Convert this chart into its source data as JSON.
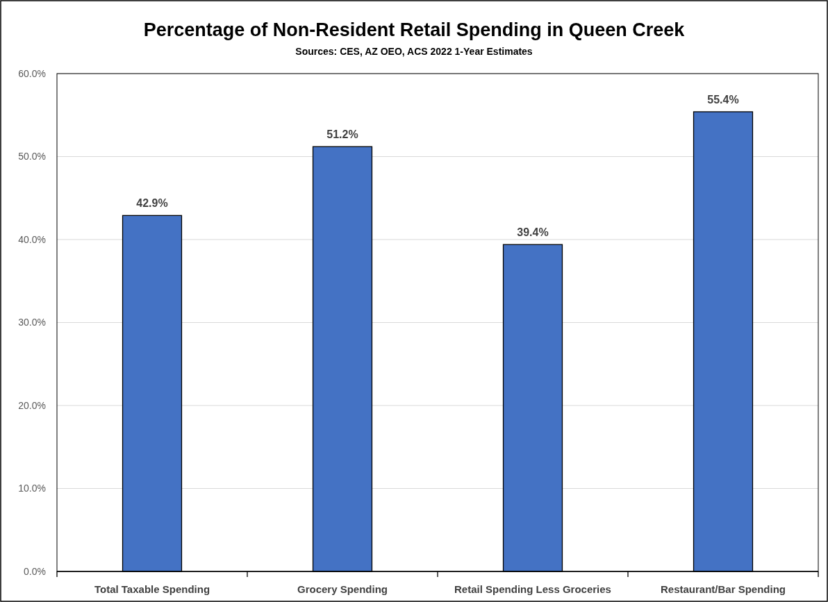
{
  "chart_data": {
    "type": "bar",
    "title": "Percentage of Non-Resident Retail Spending in Queen Creek",
    "subtitle": "Sources: CES, AZ OEO, ACS 2022 1-Year Estimates",
    "categories": [
      "Total Taxable Spending",
      "Grocery Spending",
      "Retail Spending Less Groceries",
      "Restaurant/Bar Spending"
    ],
    "values": [
      42.9,
      51.2,
      39.4,
      55.4
    ],
    "value_labels": [
      "42.9%",
      "51.2%",
      "39.4%",
      "55.4%"
    ],
    "color": "#4472c4",
    "ylim": [
      0,
      60
    ],
    "yticks": [
      {
        "value": 0,
        "label": "0.0%"
      },
      {
        "value": 10,
        "label": "10.0%"
      },
      {
        "value": 20,
        "label": "20.0%"
      },
      {
        "value": 30,
        "label": "30.0%"
      },
      {
        "value": 40,
        "label": "40.0%"
      },
      {
        "value": 50,
        "label": "50.0%"
      },
      {
        "value": 60,
        "label": "60.0%"
      }
    ],
    "grid": "y"
  }
}
